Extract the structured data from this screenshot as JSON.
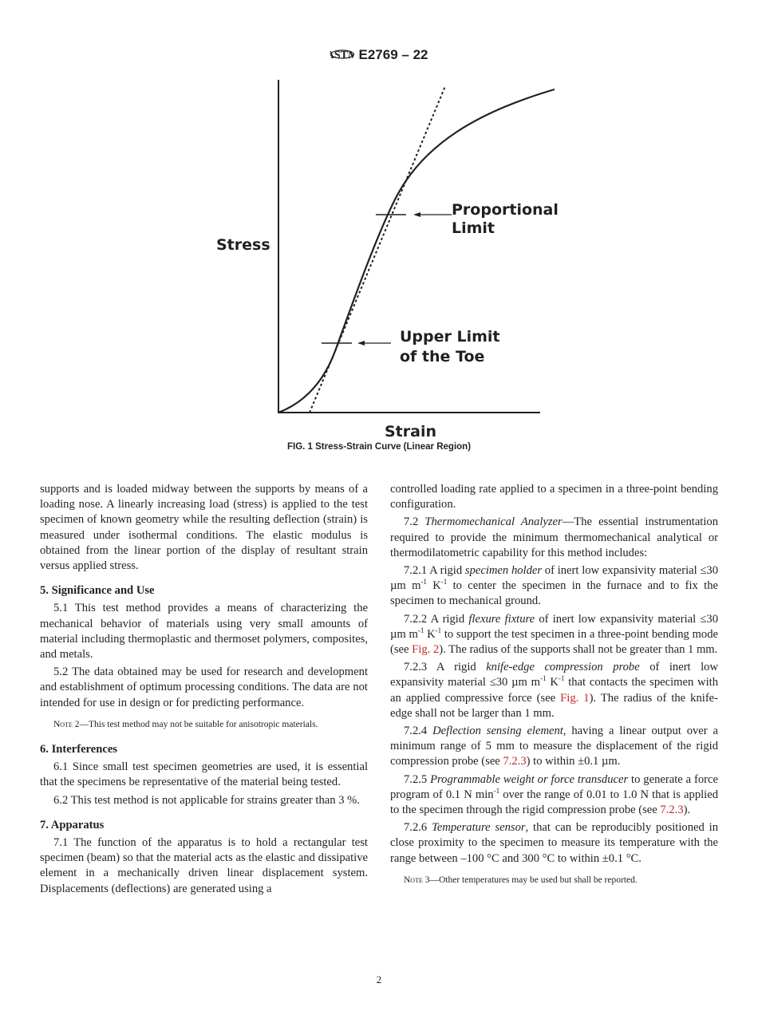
{
  "header": {
    "logo": "ASTM",
    "designation": "E2769 – 22"
  },
  "figure": {
    "labels": {
      "y_axis": "Stress",
      "x_axis": "Strain",
      "proportional_1": "Proportional",
      "proportional_2": "Limit",
      "toe_1": "Upper Limit",
      "toe_2": "of the Toe"
    },
    "caption": "FIG. 1 Stress-Strain Curve (Linear Region)"
  },
  "colors": {
    "text": "#231f20",
    "link": "#c0272d"
  },
  "left_column": [
    {
      "type": "p",
      "noind": true,
      "segs": [
        [
          "supports and is loaded midway between the supports by means of a loading nose. A linearly increasing load (stress) is applied to the test specimen of known geometry while the resulting deflection (strain) is measured under isothermal conditions. The elastic modulus is obtained from the linear portion of the display of resultant strain versus applied stress.",
          "n"
        ]
      ]
    },
    {
      "type": "h",
      "segs": [
        [
          "5. Significance and Use",
          "n"
        ]
      ]
    },
    {
      "type": "p",
      "segs": [
        [
          "5.1 This test method provides a means of characterizing the mechanical behavior of materials using very small amounts of material including thermoplastic and thermoset polymers, composites, and metals.",
          "n"
        ]
      ]
    },
    {
      "type": "p",
      "segs": [
        [
          "5.2 The data obtained may be used for research and development and establishment of optimum processing conditions. The data are not intended for use in design or for predicting performance.",
          "n"
        ]
      ]
    },
    {
      "type": "note",
      "segs": [
        [
          "Note",
          "sc"
        ],
        [
          " 2—This test method may not be suitable for anisotropic materials.",
          "n"
        ]
      ]
    },
    {
      "type": "h",
      "segs": [
        [
          "6. Interferences",
          "n"
        ]
      ]
    },
    {
      "type": "p",
      "segs": [
        [
          "6.1 Since small test specimen geometries are used, it is essential that the specimens be representative of the material being tested.",
          "n"
        ]
      ]
    },
    {
      "type": "p",
      "segs": [
        [
          "6.2 This test method is not applicable for strains greater than 3 %.",
          "n"
        ]
      ]
    },
    {
      "type": "h",
      "segs": [
        [
          "7. Apparatus",
          "n"
        ]
      ]
    },
    {
      "type": "p",
      "segs": [
        [
          "7.1 The function of the apparatus is to hold a rectangular test specimen (beam) so that the material acts as the elastic and dissipative element in a mechanically driven linear displacement system. Displacements (deflections) are generated using a",
          "n"
        ]
      ]
    }
  ],
  "right_column": [
    {
      "type": "p",
      "noind": true,
      "segs": [
        [
          "controlled loading rate applied to a specimen in a three-point bending configuration.",
          "n"
        ]
      ]
    },
    {
      "type": "p",
      "segs": [
        [
          "7.2 ",
          "n"
        ],
        [
          "Thermomechanical Analyzer",
          "i"
        ],
        [
          "—The essential instrumentation required to provide the minimum thermomechanical analytical or thermodilatometric capability for this method includes:",
          "n"
        ]
      ]
    },
    {
      "type": "p",
      "segs": [
        [
          "7.2.1 A rigid ",
          "n"
        ],
        [
          "specimen holder",
          "i"
        ],
        [
          " of inert low expansivity material ≤30 µm m",
          "n"
        ],
        [
          "-1",
          "s"
        ],
        [
          " K",
          "n"
        ],
        [
          "-1",
          "s"
        ],
        [
          " to center the specimen in the furnace and to fix the specimen to mechanical ground.",
          "n"
        ]
      ]
    },
    {
      "type": "p",
      "segs": [
        [
          "7.2.2 A rigid ",
          "n"
        ],
        [
          "flexure fixture",
          "i"
        ],
        [
          " of inert low expansivity material ≤30 µm m",
          "n"
        ],
        [
          "-1",
          "s"
        ],
        [
          " K",
          "n"
        ],
        [
          "-1",
          "s"
        ],
        [
          " to support the test specimen in a three-point bending mode (see ",
          "n"
        ],
        [
          "Fig. 2",
          "a"
        ],
        [
          "). The radius of the supports shall not be greater than 1 mm.",
          "n"
        ]
      ]
    },
    {
      "type": "p",
      "segs": [
        [
          "7.2.3 A rigid ",
          "n"
        ],
        [
          "knife-edge compression probe",
          "i"
        ],
        [
          " of inert low expansivity material ≤30 µm m",
          "n"
        ],
        [
          "-1",
          "s"
        ],
        [
          " K",
          "n"
        ],
        [
          "-1",
          "s"
        ],
        [
          " that contacts the specimen with an applied compressive force (see ",
          "n"
        ],
        [
          "Fig. 1",
          "a"
        ],
        [
          "). The radius of the knife-edge shall not be larger than 1 mm.",
          "n"
        ]
      ]
    },
    {
      "type": "p",
      "segs": [
        [
          "7.2.4 ",
          "n"
        ],
        [
          "Deflection sensing element",
          "i"
        ],
        [
          ", having a linear output over a minimum range of 5 mm to measure the displacement of the rigid compression probe (see ",
          "n"
        ],
        [
          "7.2.3",
          "a"
        ],
        [
          ") to within ±0.1 µm.",
          "n"
        ]
      ]
    },
    {
      "type": "p",
      "segs": [
        [
          "7.2.5 ",
          "n"
        ],
        [
          "Programmable weight or force transducer",
          "i"
        ],
        [
          " to generate a force program of 0.1 N min",
          "n"
        ],
        [
          "-1",
          "s"
        ],
        [
          " over the range of 0.01 to 1.0 N that is applied to the specimen through the rigid compression probe (see ",
          "n"
        ],
        [
          "7.2.3",
          "a"
        ],
        [
          ").",
          "n"
        ]
      ]
    },
    {
      "type": "p",
      "segs": [
        [
          "7.2.6 ",
          "n"
        ],
        [
          "Temperature sensor",
          "i"
        ],
        [
          ", that can be reproducibly positioned in close proximity to the specimen to measure its temperature with the range between –100 °C and 300 °C to within ±0.1 °C.",
          "n"
        ]
      ]
    },
    {
      "type": "note",
      "segs": [
        [
          "Note",
          "sc"
        ],
        [
          " 3—Other temperatures may be used but shall be reported.",
          "n"
        ]
      ]
    }
  ],
  "page_number": "2"
}
